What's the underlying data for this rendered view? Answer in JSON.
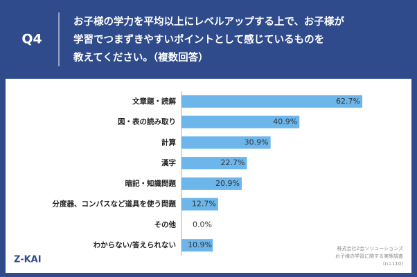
{
  "question_number": "Q4",
  "question_lines": [
    "お子様の学力を平均以上にレベルアップする上で、お子様が",
    "学習でつまずきやすいポイントとして感じているものを",
    "教えてください。（複数回答）"
  ],
  "chart_data": {
    "type": "bar",
    "orientation": "horizontal",
    "color": "#6cb6ec",
    "categories": [
      "文章題・読解",
      "図・表の読み取り",
      "計算",
      "漢字",
      "暗記・知識問題",
      "分度器、コンパスなど道具を使う問題",
      "その他",
      "わからない/答えられない"
    ],
    "values": [
      62.7,
      40.9,
      30.9,
      22.7,
      20.9,
      12.7,
      0.0,
      10.9
    ],
    "value_labels": [
      "62.7%",
      "40.9%",
      "30.9%",
      "22.7%",
      "20.9%",
      "12.7%",
      "0.0%",
      "10.9%"
    ]
  },
  "logo": "Z-KAI",
  "source_lines": [
    "株式会社Z会ソリューションズ",
    "お子様の学習に関する実態調査",
    "(n=110)"
  ]
}
